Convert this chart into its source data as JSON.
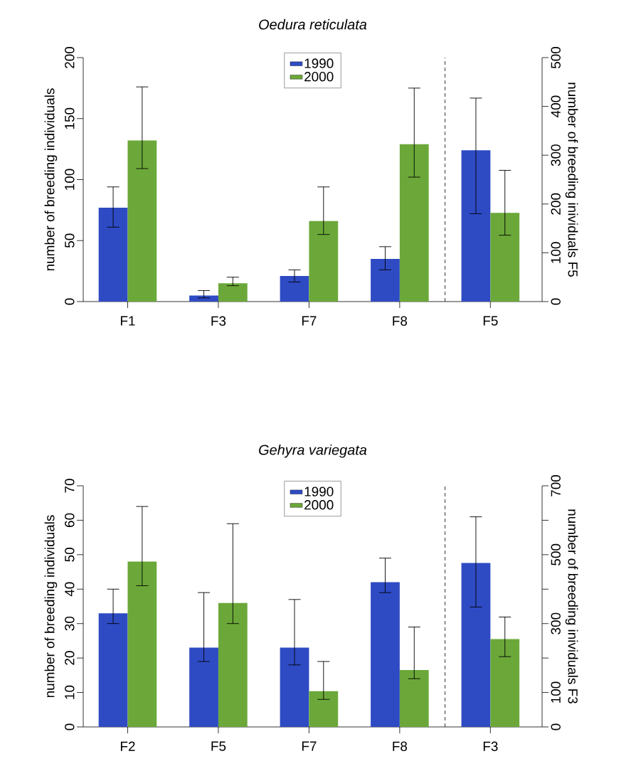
{
  "chart_data": [
    {
      "type": "bar",
      "title": "Oedura reticulata",
      "ylabel": "number of breeding individuals",
      "y2label": "number of breeding inividuals F5",
      "categories": [
        "F1",
        "F3",
        "F7",
        "F8",
        "F5"
      ],
      "series": [
        {
          "name": "1990",
          "color": "#2e4bc4",
          "values": [
            77,
            5,
            21,
            35,
            null
          ],
          "errors": [
            [
              61,
              94
            ],
            [
              3,
              9
            ],
            [
              16,
              26
            ],
            [
              26,
              45
            ],
            null
          ]
        },
        {
          "name": "2000",
          "color": "#6ba839",
          "values": [
            132,
            15,
            66,
            129,
            null
          ],
          "errors": [
            [
              109,
              176
            ],
            [
              13,
              20
            ],
            [
              55,
              94
            ],
            [
              102,
              175
            ],
            null
          ]
        },
        {
          "color": "#2e4bc4",
          "axis": "y2",
          "values": [
            null,
            null,
            null,
            null,
            310
          ],
          "errors": [
            null,
            null,
            null,
            null,
            [
              180,
              417
            ]
          ]
        },
        {
          "color": "#6ba839",
          "axis": "y2",
          "values": [
            null,
            null,
            null,
            null,
            182
          ],
          "errors": [
            null,
            null,
            null,
            null,
            [
              136,
              269
            ]
          ]
        }
      ],
      "ylim": [
        0,
        200
      ],
      "yticks": [
        0,
        50,
        100,
        150,
        200
      ],
      "y2lim": [
        0,
        500
      ],
      "y2ticks": [
        0,
        100,
        200,
        300,
        400,
        500
      ],
      "legend": "top"
    },
    {
      "type": "bar",
      "title": "Gehyra variegata",
      "ylabel": "number of breeding individuals",
      "y2label": "number of breeding inividuals F3",
      "categories": [
        "F2",
        "F5",
        "F7",
        "F8",
        "F3"
      ],
      "series": [
        {
          "name": "1990",
          "color": "#2e4bc4",
          "values": [
            33,
            23,
            23,
            42,
            null
          ],
          "errors": [
            [
              30,
              40
            ],
            [
              19,
              39
            ],
            [
              18,
              37
            ],
            [
              39,
              49
            ],
            null
          ]
        },
        {
          "name": "2000",
          "color": "#6ba839",
          "values": [
            48,
            36,
            10.4,
            16.5,
            null
          ],
          "errors": [
            [
              41,
              64
            ],
            [
              30,
              59
            ],
            [
              8,
              19
            ],
            [
              14,
              29
            ],
            null
          ]
        },
        {
          "color": "#2e4bc4",
          "axis": "y2",
          "values": [
            null,
            null,
            null,
            null,
            476
          ],
          "errors": [
            null,
            null,
            null,
            null,
            [
              348,
              610
            ]
          ]
        },
        {
          "color": "#6ba839",
          "axis": "y2",
          "values": [
            null,
            null,
            null,
            null,
            255
          ],
          "errors": [
            null,
            null,
            null,
            null,
            [
              204,
              319
            ]
          ]
        }
      ],
      "ylim": [
        0,
        70
      ],
      "yticks": [
        0,
        10,
        20,
        30,
        40,
        50,
        60,
        70
      ],
      "y2lim": [
        0,
        700
      ],
      "y2ticks": [
        0,
        100,
        {
          "value": 200,
          "label": null
        },
        300,
        {
          "value": 400,
          "label": null
        },
        500,
        {
          "value": 600,
          "label": null
        },
        700
      ],
      "legend": "top"
    }
  ]
}
